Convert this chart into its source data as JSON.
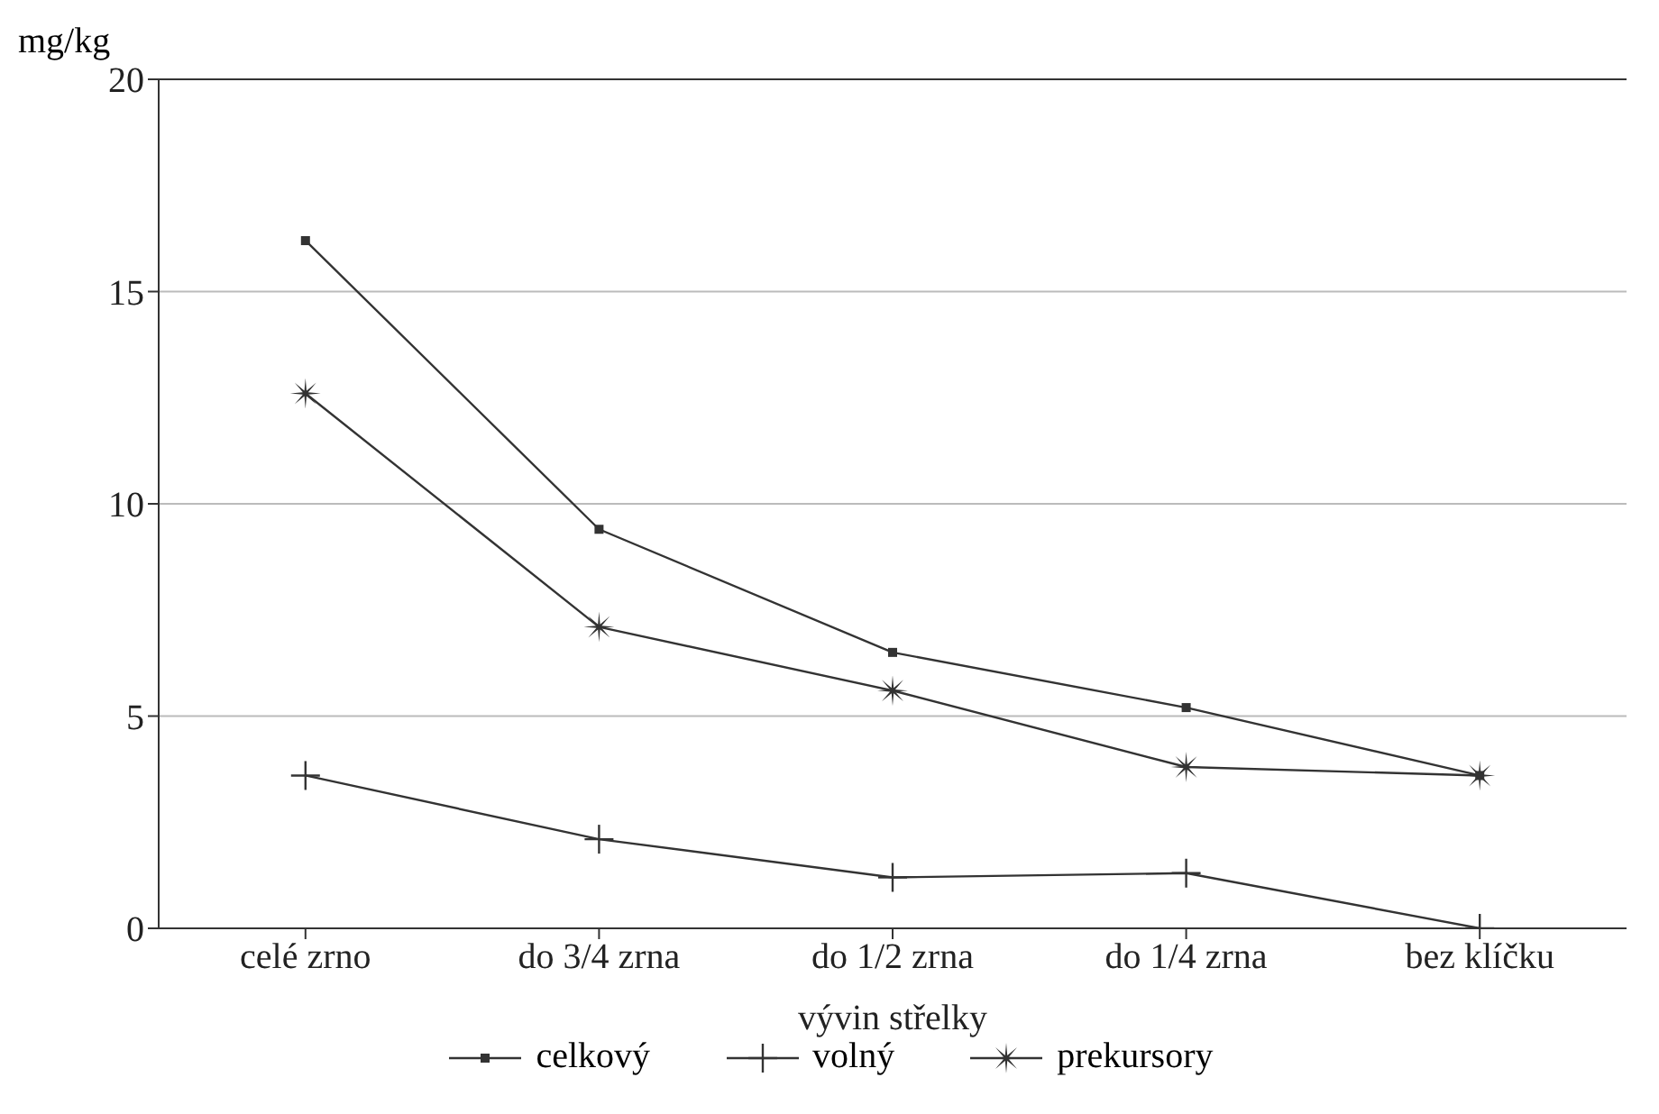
{
  "chart_data": {
    "type": "line",
    "ylabel": "mg/kg",
    "xlabel": "vývin střelky",
    "categories": [
      "celé zrno",
      "do 3/4 zrna",
      "do 1/2 zrna",
      "do 1/4 zrna",
      "bez klíčku"
    ],
    "series": [
      {
        "name": "celkový",
        "color": "#333333",
        "marker": "square",
        "values": [
          16.2,
          9.4,
          6.5,
          5.2,
          3.6
        ]
      },
      {
        "name": "volný",
        "color": "#333333",
        "marker": "cross",
        "values": [
          3.6,
          2.1,
          1.2,
          1.3,
          0
        ]
      },
      {
        "name": "prekursory",
        "color": "#333333",
        "marker": "star",
        "values": [
          12.6,
          7.1,
          5.6,
          3.8,
          3.6
        ]
      }
    ],
    "ylim": [
      0,
      20
    ],
    "yticks": [
      0,
      5,
      10,
      15,
      20
    ],
    "grid": "y",
    "legend": "bottom",
    "line_style": "solid"
  }
}
